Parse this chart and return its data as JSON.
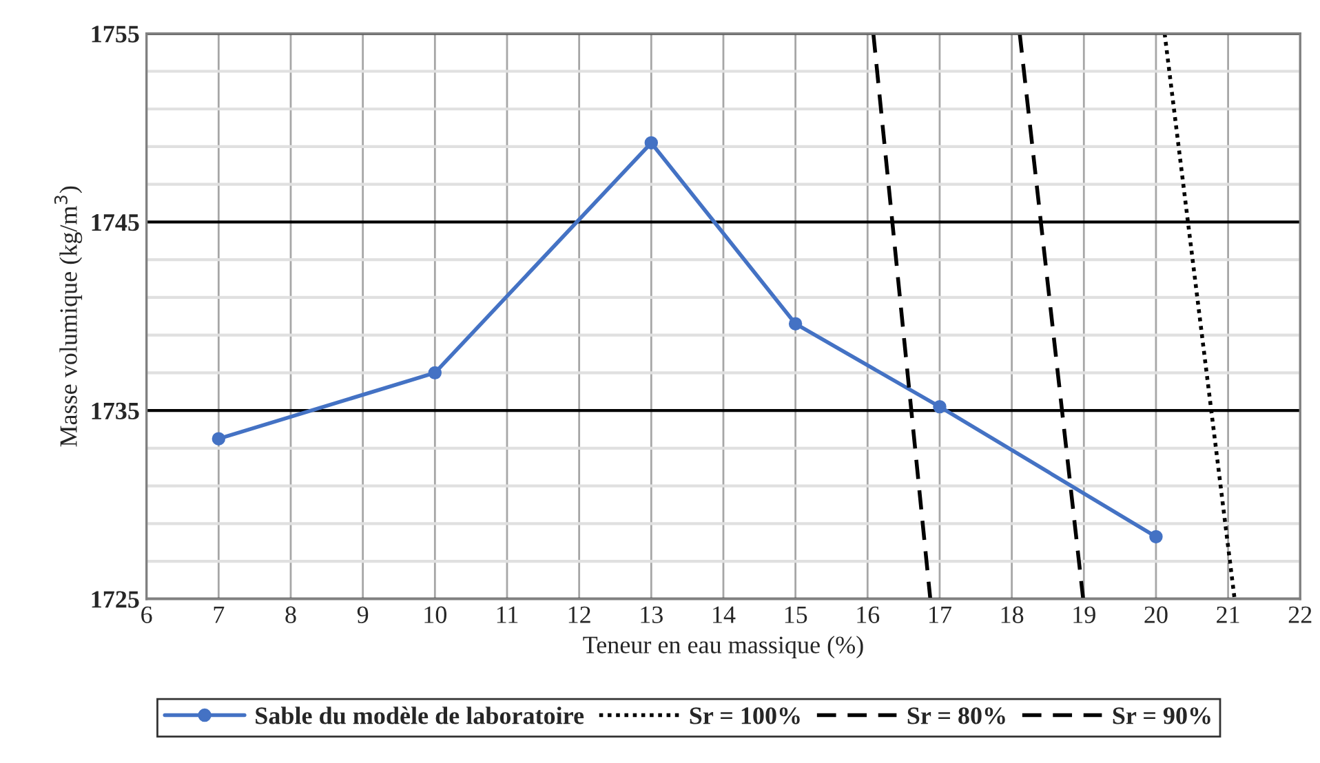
{
  "chart_data": {
    "type": "line",
    "xlabel": "Teneur en eau massique (%)",
    "ylabel": "Masse volumique (kg/m$^{3}$)",
    "xlim": [
      6,
      22
    ],
    "xticks": [
      6,
      7,
      8,
      9,
      10,
      11,
      12,
      13,
      14,
      15,
      16,
      17,
      18,
      19,
      20,
      21,
      22
    ],
    "ylim": [
      1725,
      1755
    ],
    "yticks": [
      1725,
      {
        "value": 1727,
        "label": null
      },
      {
        "value": 1729,
        "label": null
      },
      {
        "value": 1731,
        "label": null
      },
      {
        "value": 1733,
        "label": null
      },
      1735,
      {
        "value": 1737,
        "label": null
      },
      {
        "value": 1739,
        "label": null
      },
      {
        "value": 1741,
        "label": null
      },
      {
        "value": 1743,
        "label": null
      },
      1745,
      {
        "value": 1747,
        "label": null
      },
      {
        "value": 1749,
        "label": null
      },
      {
        "value": 1751,
        "label": null
      },
      {
        "value": 1753,
        "label": null
      },
      1755
    ],
    "grid": true,
    "legend": "bottom",
    "series": [
      {
        "name": "Sable du modèle de laboratoire",
        "color": "#4472c4",
        "marker": "circle",
        "line_style": "solid",
        "x": [
          7,
          10,
          13,
          15,
          17,
          20
        ],
        "values": [
          1733.5,
          1737,
          1749.2,
          1739.6,
          1735.2,
          1728.3
        ]
      },
      {
        "name": "Sr = 100%",
        "color": "#000000",
        "marker": "none",
        "line_style": "dotted",
        "x": [
          20.12,
          21.09
        ],
        "values": [
          1755,
          1725
        ]
      },
      {
        "name": "Sr = 80%",
        "color": "#000000",
        "marker": "none",
        "line_style": "dashed",
        "x": [
          16.08,
          16.87
        ],
        "values": [
          1755,
          1725
        ]
      },
      {
        "name": "Sr = 90%",
        "color": "#000000",
        "marker": "none",
        "line_style": "dashed",
        "x": [
          18.11,
          18.99
        ],
        "values": [
          1755,
          1725
        ]
      }
    ]
  }
}
